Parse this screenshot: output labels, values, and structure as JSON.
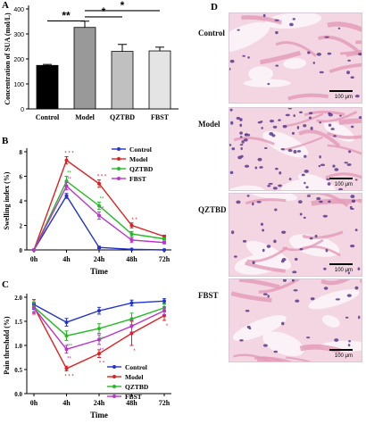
{
  "panels": {
    "A": "A",
    "B": "B",
    "C": "C",
    "D": "D"
  },
  "chart_data": [
    {
      "id": "A",
      "type": "bar",
      "categories": [
        "Control",
        "Model",
        "QZTBD",
        "FBST"
      ],
      "values": [
        174,
        326,
        230,
        232
      ],
      "errors": [
        4,
        25,
        28,
        15
      ],
      "bar_colors": [
        "#000000",
        "#999999",
        "#c0c0c0",
        "#e4e4e4"
      ],
      "ylabel": "Concentration of SUA (mol/L)",
      "ylim": [
        0,
        400
      ],
      "yticks": [
        "0",
        "100",
        "200",
        "300",
        "400"
      ],
      "significance": [
        {
          "from": "Control",
          "to": "Model",
          "label": "**"
        },
        {
          "from": "Model",
          "to": "QZTBD",
          "label": "*"
        },
        {
          "from": "Model",
          "to": "FBST",
          "label": "*"
        }
      ]
    },
    {
      "id": "B",
      "type": "line",
      "x": [
        "0h",
        "4h",
        "24h",
        "48h",
        "72h"
      ],
      "xlabel": "Time",
      "ylabel": "Swelling index (%)",
      "ylim": [
        0,
        8
      ],
      "yticks": [
        "0",
        "2",
        "4",
        "6",
        "8"
      ],
      "legend_position": "right",
      "series": [
        {
          "name": "Control",
          "color": "#2233cc",
          "values": [
            0,
            4.4,
            0.2,
            0.05,
            0.0
          ],
          "errors": [
            0,
            0.2,
            0.1,
            0.05,
            0.05
          ]
        },
        {
          "name": "Model",
          "color": "#e02020",
          "values": [
            0,
            7.3,
            5.4,
            2.0,
            1.1
          ],
          "errors": [
            0,
            0.3,
            0.3,
            0.2,
            0.1
          ]
        },
        {
          "name": "QZTBD",
          "color": "#22bb22",
          "values": [
            0,
            5.6,
            3.6,
            1.3,
            0.9
          ],
          "errors": [
            0,
            0.4,
            0.3,
            0.2,
            0.1
          ]
        },
        {
          "name": "FBST",
          "color": "#bb33cc",
          "values": [
            0,
            5.2,
            2.8,
            0.8,
            0.6
          ],
          "errors": [
            0,
            0.3,
            0.3,
            0.2,
            0.1
          ]
        }
      ],
      "annotations": [
        {
          "x": "4h",
          "text": "* * *",
          "color": "#e02020"
        },
        {
          "x": "4h",
          "text": "**",
          "color": "#22bb22"
        },
        {
          "x": "4h",
          "text": "**",
          "color": "#bb33cc"
        },
        {
          "x": "24h",
          "text": "* * *",
          "color": "#e02020"
        },
        {
          "x": "24h",
          "text": "**",
          "color": "#22bb22"
        },
        {
          "x": "24h",
          "text": "**",
          "color": "#bb33cc"
        },
        {
          "x": "48h",
          "text": "* *",
          "color": "#e02020"
        }
      ]
    },
    {
      "id": "C",
      "type": "line",
      "x": [
        "0h",
        "4h",
        "24h",
        "48h",
        "72h"
      ],
      "xlabel": "Time",
      "ylabel": "Pain threshold (%)",
      "ylim": [
        0,
        2.0
      ],
      "yticks": [
        "0.0",
        "0.5",
        "1.0",
        "1.5",
        "2.0"
      ],
      "legend_position": "right",
      "series": [
        {
          "name": "Control",
          "color": "#2233cc",
          "values": [
            1.85,
            1.48,
            1.72,
            1.88,
            1.92
          ],
          "errors": [
            0.1,
            0.08,
            0.07,
            0.06,
            0.05
          ]
        },
        {
          "name": "Model",
          "color": "#e02020",
          "values": [
            1.8,
            0.52,
            0.83,
            1.25,
            1.62
          ],
          "errors": [
            0.15,
            0.05,
            0.08,
            0.25,
            0.1
          ]
        },
        {
          "name": "QZTBD",
          "color": "#22bb22",
          "values": [
            1.8,
            1.2,
            1.35,
            1.55,
            1.78
          ],
          "errors": [
            0.1,
            0.1,
            0.1,
            0.12,
            0.08
          ]
        },
        {
          "name": "FBST",
          "color": "#bb33cc",
          "values": [
            1.78,
            0.92,
            1.12,
            1.4,
            1.72
          ],
          "errors": [
            0.1,
            0.08,
            0.1,
            0.12,
            0.08
          ]
        }
      ],
      "annotations": [
        {
          "x": "4h",
          "text": "***",
          "color": "#22bb22"
        },
        {
          "x": "4h",
          "text": "**",
          "color": "#bb33cc"
        },
        {
          "x": "4h",
          "text": "* * *",
          "color": "#e02020"
        },
        {
          "x": "24h",
          "text": "**",
          "color": "#22bb22"
        },
        {
          "x": "24h",
          "text": "**",
          "color": "#bb33cc"
        },
        {
          "x": "24h",
          "text": "* *",
          "color": "#e02020"
        },
        {
          "x": "48h",
          "text": "*",
          "color": "#e02020"
        },
        {
          "x": "72h",
          "text": "*",
          "color": "#e02020"
        }
      ]
    }
  ],
  "histology": {
    "rows": [
      {
        "label": "Control",
        "scale": "100 μm",
        "tone": "light"
      },
      {
        "label": "Model",
        "scale": "100 μm",
        "tone": "dense"
      },
      {
        "label": "QZTBD",
        "scale": "100 μm",
        "tone": "medium"
      },
      {
        "label": "FBST",
        "scale": "100 μm",
        "tone": "light"
      }
    ],
    "colors": {
      "stroma": "#f3d6e2",
      "fiber": "#e39ab8",
      "nucleus": "#5a3a8c",
      "space": "#faf2f6"
    }
  }
}
